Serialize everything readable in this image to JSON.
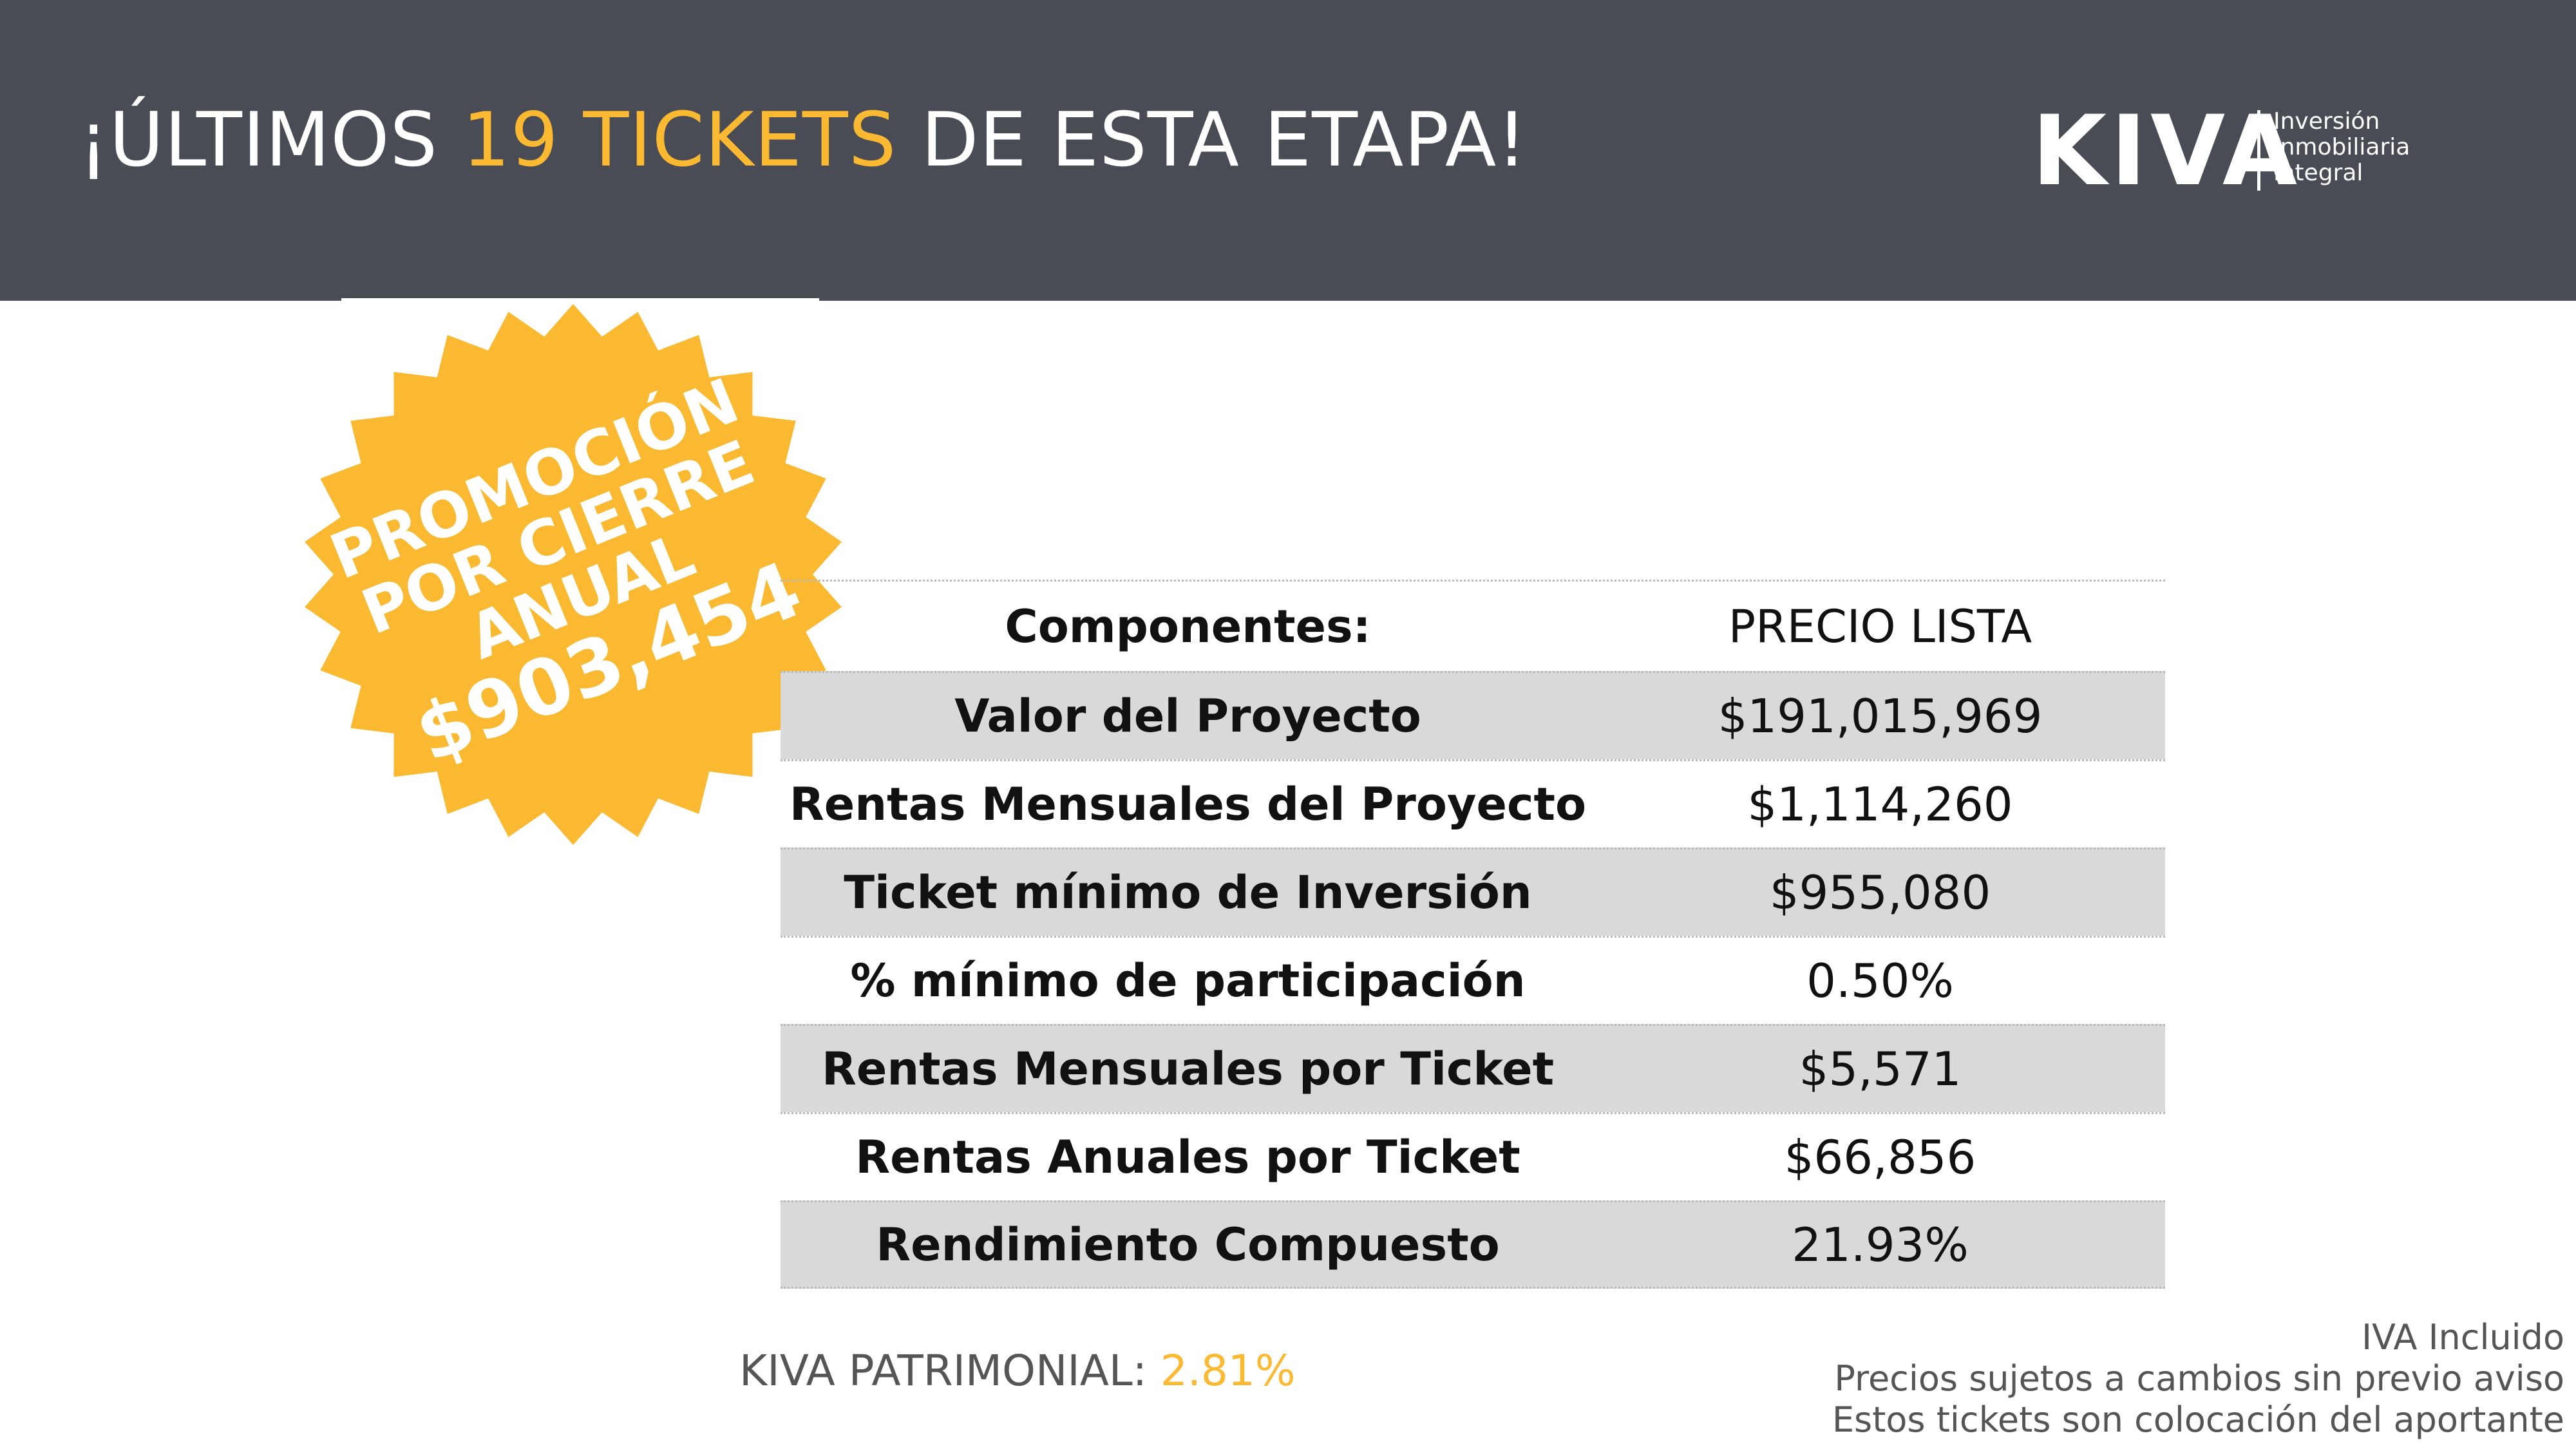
{
  "header": {
    "title_prefix": "¡ÚLTIMOS ",
    "title_highlight": "19 TICKETS",
    "title_suffix": " DE ESTA ETAPA!",
    "background_color": "#4a4c55",
    "accent_color": "#fbb831"
  },
  "logo": {
    "wordmark": "KIVA",
    "tagline_lines": [
      "Inversión",
      "Inmobiliaria",
      "Integral"
    ]
  },
  "badge": {
    "lines": [
      "PROMOCIÓN",
      "POR CIERRE",
      "ANUAL"
    ],
    "price": "$903,454",
    "color": "#fbb831"
  },
  "table": {
    "header_label": "Componentes:",
    "header_value": "PRECIO LISTA",
    "rows": [
      {
        "label": "Valor del Proyecto",
        "value": "$191,015,969"
      },
      {
        "label": "Rentas Mensuales del Proyecto",
        "value": "$1,114,260"
      },
      {
        "label": "Ticket mínimo de Inversión",
        "value": "$955,080"
      },
      {
        "label": "% mínimo de participación",
        "value": "0.50%"
      },
      {
        "label": "Rentas Mensuales por Ticket",
        "value": "$5,571"
      },
      {
        "label": "Rentas Anuales por Ticket",
        "value": "$66,856"
      },
      {
        "label": "Rendimiento Compuesto",
        "value": "21.93%"
      }
    ],
    "shaded_color": "#d9d9d9"
  },
  "footer": {
    "patrimonial_label": "KIVA PATRIMONIAL: ",
    "patrimonial_value": "2.81%",
    "notes": [
      "IVA Incluido",
      "Precios sujetos a cambios sin previo aviso",
      "Estos tickets son colocación del aportante"
    ]
  }
}
